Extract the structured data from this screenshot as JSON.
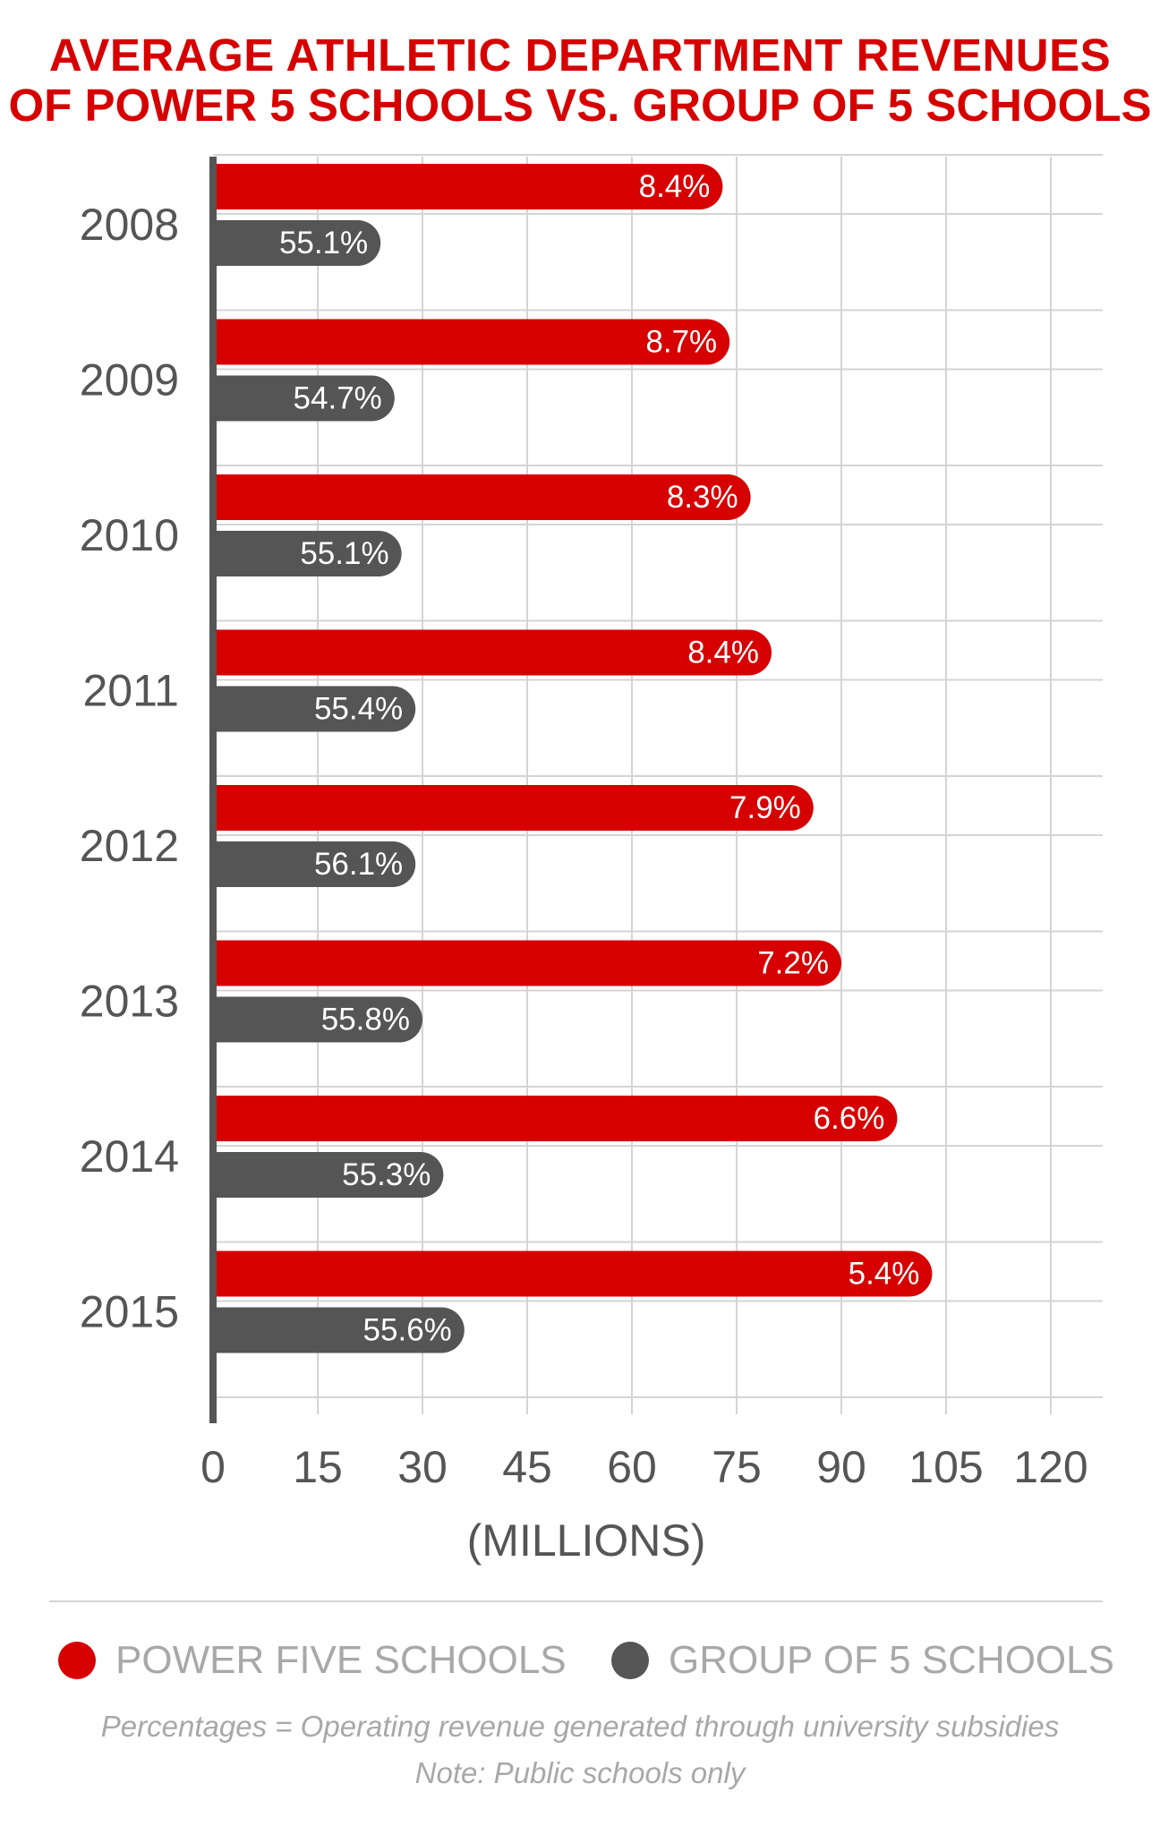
{
  "header": {
    "title": "AVERAGE ATHLETIC DEPARTMENT REVENUES",
    "subtitle": "OF POWER 5 SCHOOLS VS. GROUP OF 5 SCHOOLS"
  },
  "chart_data": {
    "type": "bar",
    "orientation": "horizontal",
    "categories": [
      "2008",
      "2009",
      "2010",
      "2011",
      "2012",
      "2013",
      "2014",
      "2015"
    ],
    "series": [
      {
        "name": "POWER FIVE SCHOOLS",
        "color": "#d60000",
        "values": [
          73,
          74,
          77,
          80,
          86,
          90,
          98,
          103
        ],
        "labels": [
          "8.4%",
          "8.7%",
          "8.3%",
          "8.4%",
          "7.9%",
          "7.2%",
          "6.6%",
          "5.4%"
        ]
      },
      {
        "name": "GROUP OF 5 SCHOOLS",
        "color": "#555555",
        "values": [
          24,
          26,
          27,
          29,
          29,
          30,
          33,
          36
        ],
        "labels": [
          "55.1%",
          "54.7%",
          "55.1%",
          "55.4%",
          "56.1%",
          "55.8%",
          "55.3%",
          "55.6%"
        ]
      }
    ],
    "x_ticks": [
      "0",
      "15",
      "30",
      "45",
      "60",
      "75",
      "90",
      "105",
      "120"
    ],
    "xlim": [
      0,
      128
    ],
    "xlabel": "(MILLIONS)",
    "grid": true,
    "legend_position": "bottom"
  },
  "notes": {
    "line1": "Percentages = Operating revenue generated through university subsidies",
    "line2": "Note: Public schools only"
  }
}
